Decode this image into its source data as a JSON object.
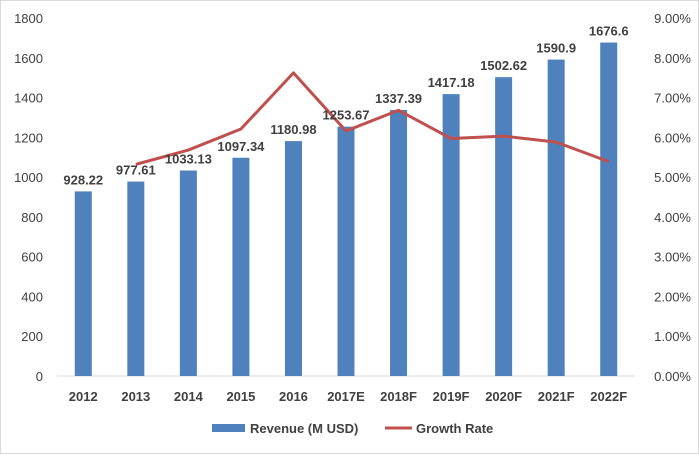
{
  "chart_data": {
    "type": "bar+line",
    "categories": [
      "2012",
      "2013",
      "2014",
      "2015",
      "2016",
      "2017E",
      "2018F",
      "2019F",
      "2020F",
      "2021F",
      "2022F"
    ],
    "series": [
      {
        "name": "Revenue (M USD)",
        "type": "bar",
        "axis": "left",
        "color": "#4f81bd",
        "values": [
          928.22,
          977.61,
          1033.13,
          1097.34,
          1180.98,
          1253.67,
          1337.39,
          1417.18,
          1502.62,
          1590.9,
          1676.6
        ],
        "labels": [
          "928.22",
          "977.61",
          "1033.13",
          "1097.34",
          "1180.98",
          "1253.67",
          "1337.39",
          "1417.18",
          "1502.62",
          "1590.9",
          "1676.6"
        ]
      },
      {
        "name": "Growth Rate",
        "type": "line",
        "axis": "right",
        "color": "#c0504d",
        "values": [
          null,
          5.32,
          5.68,
          6.21,
          7.62,
          6.16,
          6.68,
          5.97,
          6.03,
          5.88,
          5.39
        ]
      }
    ],
    "left_axis": {
      "ylim": [
        0,
        1800
      ],
      "ticks": [
        "0",
        "200",
        "400",
        "600",
        "800",
        "1000",
        "1200",
        "1400",
        "1600",
        "1800"
      ]
    },
    "right_axis": {
      "ylim": [
        0,
        9
      ],
      "ticks": [
        "0.00%",
        "1.00%",
        "2.00%",
        "3.00%",
        "4.00%",
        "5.00%",
        "6.00%",
        "7.00%",
        "8.00%",
        "9.00%"
      ]
    },
    "legend": "bottom",
    "grid": false
  }
}
